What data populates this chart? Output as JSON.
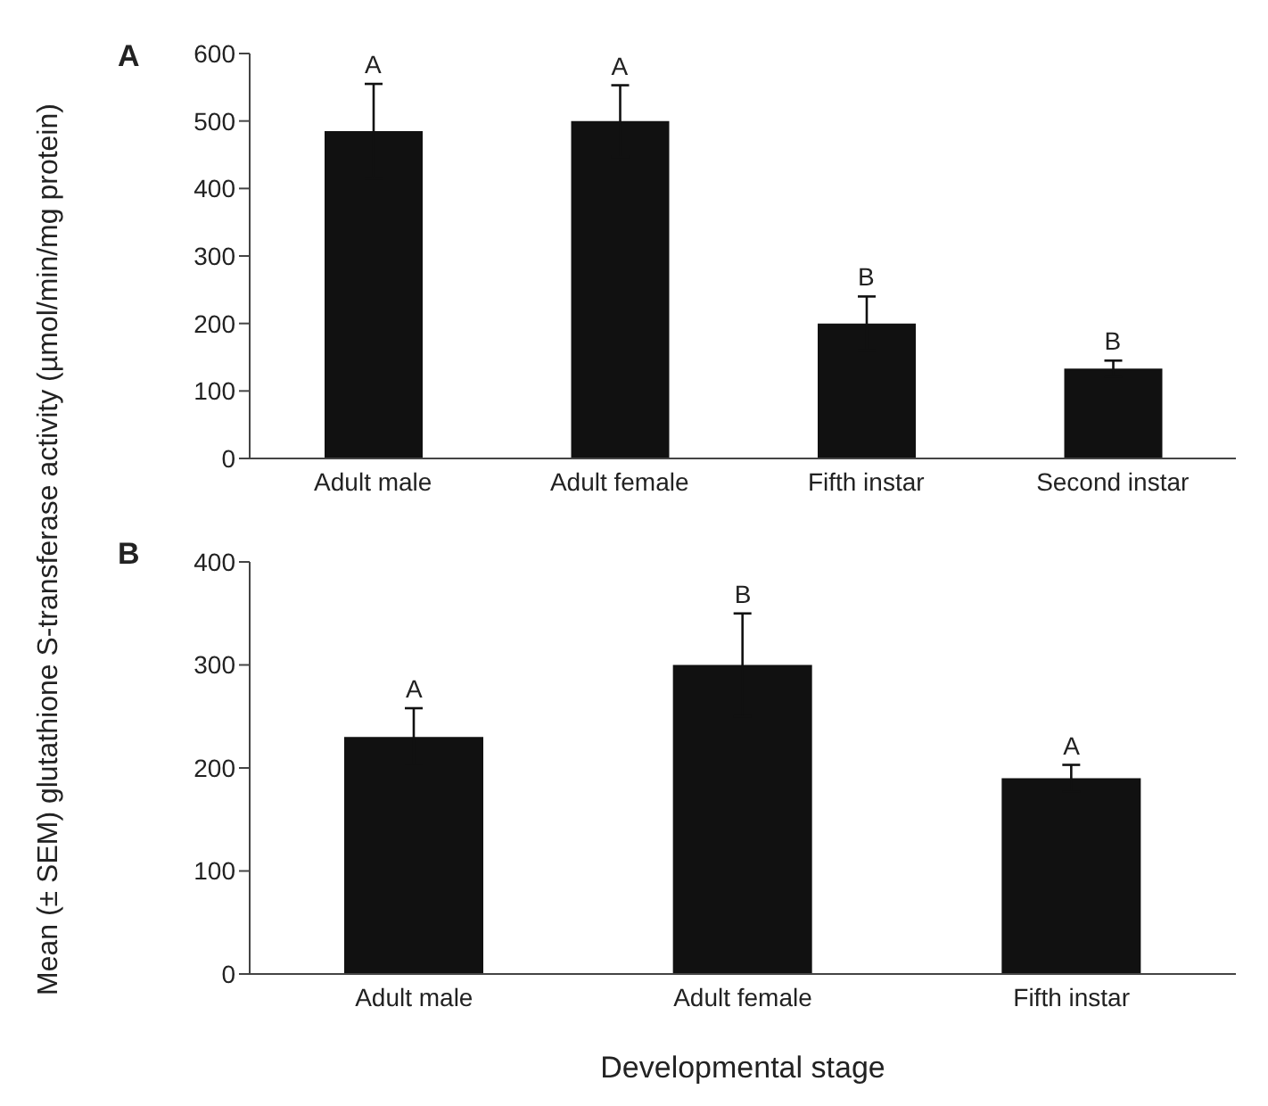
{
  "chart_data": [
    {
      "type": "bar",
      "title": "A",
      "ylabel": "Mean (± SEM) glutathione S-transferase activity (µmol/min/mg protein)",
      "categories": [
        "Adult male",
        "Adult female",
        "Fifth instar",
        "Second instar"
      ],
      "values": [
        485,
        500,
        200,
        133
      ],
      "errors": [
        70,
        53,
        40,
        12
      ],
      "color": "#111111",
      "ylim": [
        0,
        600
      ],
      "yticks": [
        0,
        100,
        200,
        300,
        400,
        500,
        600
      ],
      "annotations": [
        {
          "text": "A",
          "x": "Adult male",
          "y": 555
        },
        {
          "text": "A",
          "x": "Adult female",
          "y": 553
        },
        {
          "text": "B",
          "x": "Fifth instar",
          "y": 240
        },
        {
          "text": "B",
          "x": "Second instar",
          "y": 145
        }
      ]
    },
    {
      "type": "bar",
      "title": "B",
      "xlabel": "Developmental stage",
      "categories": [
        "Adult male",
        "Adult female",
        "Fifth instar"
      ],
      "values": [
        230,
        300,
        190
      ],
      "errors": [
        28,
        50,
        13
      ],
      "color": "#111111",
      "ylim": [
        0,
        400
      ],
      "yticks": [
        0,
        100,
        200,
        300,
        400
      ],
      "annotations": [
        {
          "text": "A",
          "x": "Adult male",
          "y": 258
        },
        {
          "text": "B",
          "x": "Adult female",
          "y": 350
        },
        {
          "text": "A",
          "x": "Fifth instar",
          "y": 203
        }
      ]
    }
  ]
}
